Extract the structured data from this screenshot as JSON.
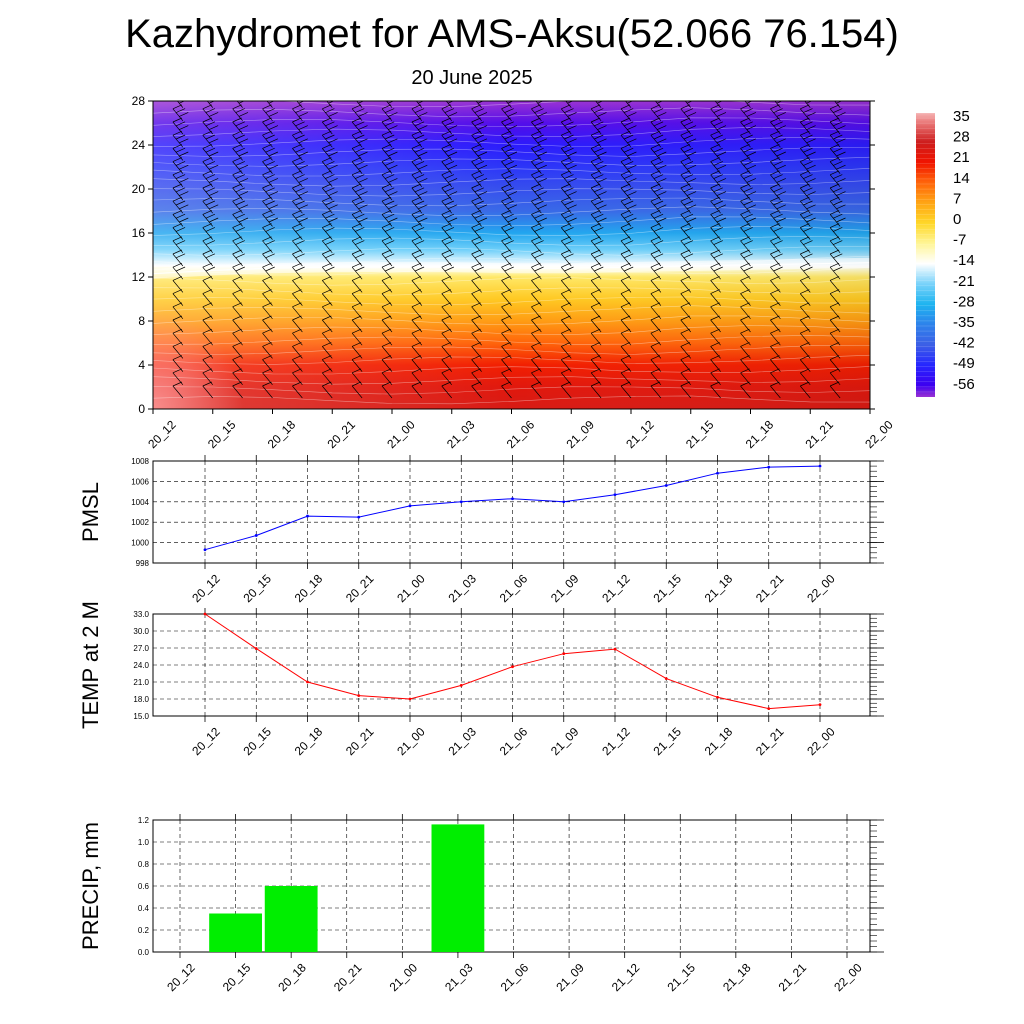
{
  "title": "Kazhydromet for AMS-Aksu(52.066 76.154)",
  "subtitle": "20 June 2025",
  "chart_data": [
    {
      "type": "heatmap",
      "title": "",
      "x_ticks": [
        "20_12",
        "20_15",
        "20_18",
        "20_21",
        "21_00",
        "21_03",
        "21_06",
        "21_09",
        "21_12",
        "21_15",
        "21_18",
        "21_21",
        "22_00"
      ],
      "y_ticks": [
        "0",
        "4",
        "8",
        "12",
        "16",
        "20",
        "24",
        "28"
      ],
      "ylim": [
        0,
        28
      ],
      "colorbar_labels": [
        "35",
        "28",
        "21",
        "14",
        "7",
        "0",
        "-7",
        "-14",
        "-21",
        "-28",
        "-35",
        "-42",
        "-49",
        "-56"
      ],
      "colorbar_range": [
        -60,
        38
      ],
      "freezing_level": [
        12.3,
        12.6,
        12.8,
        12.9,
        12.9,
        12.9,
        12.8,
        12.8,
        12.9,
        13.0,
        13.1,
        13.2,
        13.3
      ],
      "wind_barbs": true
    },
    {
      "type": "line",
      "ylabel": "PMSL",
      "x": [
        "20_12",
        "20_15",
        "20_18",
        "20_21",
        "21_00",
        "21_03",
        "21_06",
        "21_09",
        "21_12",
        "21_15",
        "21_18",
        "21_21",
        "22_00"
      ],
      "y_ticks": [
        "998",
        "1000",
        "1002",
        "1004",
        "1006",
        "1008"
      ],
      "ylim": [
        998,
        1008
      ],
      "color": "#0000ff",
      "series": [
        {
          "values": [
            999.3,
            1000.7,
            1002.6,
            1002.5,
            1003.6,
            1004.0,
            1004.3,
            1004.0,
            1004.7,
            1005.6,
            1006.8,
            1007.4,
            1007.5
          ]
        }
      ]
    },
    {
      "type": "line",
      "ylabel": "TEMP at 2 M",
      "x": [
        "20_12",
        "20_15",
        "20_18",
        "20_21",
        "21_00",
        "21_03",
        "21_06",
        "21_09",
        "21_12",
        "21_15",
        "21_18",
        "21_21",
        "22_00"
      ],
      "y_ticks": [
        "15.0",
        "18.0",
        "21.0",
        "24.0",
        "27.0",
        "30.0",
        "33.0"
      ],
      "ylim": [
        15,
        33
      ],
      "color": "#ff0000",
      "series": [
        {
          "values": [
            33.0,
            26.9,
            21.0,
            18.6,
            18.0,
            20.4,
            23.7,
            26.0,
            26.8,
            21.6,
            18.3,
            16.3,
            17.0
          ]
        }
      ]
    },
    {
      "type": "bar",
      "ylabel": "PRECIP, mm",
      "categories": [
        "20_12",
        "20_15",
        "20_18",
        "20_21",
        "21_00",
        "21_03",
        "21_06",
        "21_09",
        "21_12",
        "21_15",
        "21_18",
        "21_21",
        "22_00"
      ],
      "y_ticks": [
        "0.0",
        "0.2",
        "0.4",
        "0.6",
        "0.8",
        "1.0",
        "1.2"
      ],
      "ylim": [
        0,
        1.2
      ],
      "color": "#00ee00",
      "values": [
        0,
        0.35,
        0.6,
        0,
        0,
        1.16,
        0,
        0,
        0,
        0,
        0,
        0,
        0
      ]
    }
  ]
}
